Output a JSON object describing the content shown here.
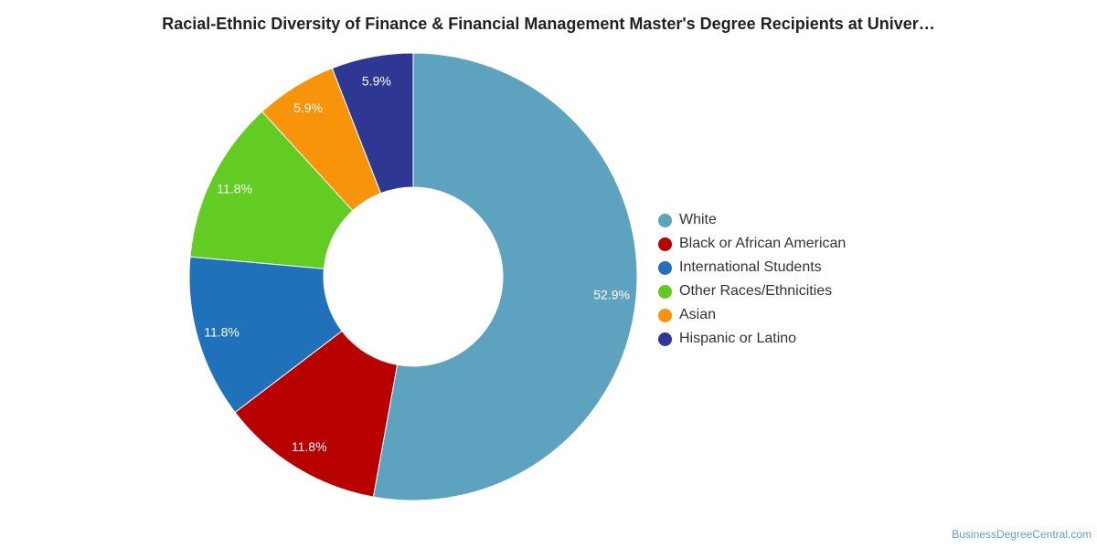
{
  "chart_data": {
    "type": "pie",
    "title": "Racial-Ethnic Diversity of Finance & Financial Management Master's Degree Recipients at Univer…",
    "slices": [
      {
        "name": "White",
        "value": 52.9,
        "label": "52.9%",
        "color": "#5da3c0"
      },
      {
        "name": "Black or African American",
        "value": 11.8,
        "label": "11.8%",
        "color": "#b80000"
      },
      {
        "name": "International Students",
        "value": 11.8,
        "label": "11.8%",
        "color": "#1f72b9"
      },
      {
        "name": "Other Races/Ethnicities",
        "value": 11.8,
        "label": "11.8%",
        "color": "#62cc22"
      },
      {
        "name": "Asian",
        "value": 5.9,
        "label": "5.9%",
        "color": "#f7940a"
      },
      {
        "name": "Hispanic or Latino",
        "value": 5.9,
        "label": "5.9%",
        "color": "#2e3793"
      }
    ],
    "legend_position": "right",
    "donut": true
  },
  "footer": {
    "credit": "BusinessDegreeCentral.com"
  }
}
